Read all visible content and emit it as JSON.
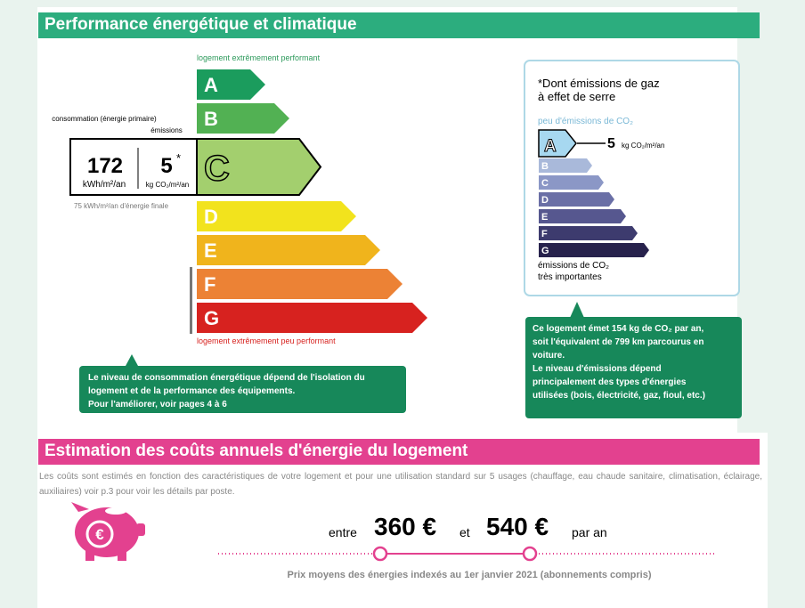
{
  "energy_section": {
    "title": "Performance énergétique et climatique",
    "top_label": "logement extrêmement performant",
    "bottom_label": "logement extrêmement peu performant",
    "classes": [
      "A",
      "B",
      "C",
      "D",
      "E",
      "F",
      "G"
    ],
    "current_class": "C",
    "consumption_label": "consommation (énergie primaire)",
    "emissions_label": "émissions",
    "consumption_value": "172",
    "consumption_unit": "kWh/m²/an",
    "emissions_value": "5",
    "emissions_mark": "*",
    "emissions_unit": "kg CO₂/m²/an",
    "final_energy": "75 kWh/m²/an d'énergie finale",
    "callout": [
      "Le niveau de consommation énergétique dépend de l'isolation du",
      "logement et de la performance des équipements.",
      "Pour l'améliorer, voir pages 4 à 6"
    ]
  },
  "climate_box": {
    "note": [
      "*Dont émissions de gaz",
      "à effet de serre"
    ],
    "top_label": "peu d'émissions de CO₂",
    "classes": [
      "A",
      "B",
      "C",
      "D",
      "E",
      "F",
      "G"
    ],
    "value": "5",
    "unit": "kg CO₂/m²/an",
    "bottom_label": [
      "émissions de CO₂",
      "très importantes"
    ],
    "callout": [
      "Ce logement émet 154 kg de CO₂ par an,",
      "soit l'équivalent de 799 km parcourus en",
      "voiture.",
      "Le niveau d'émissions dépend",
      "principalement des types d'énergies",
      "utilisées (bois, électricité, gaz, fioul, etc.)"
    ]
  },
  "cost_section": {
    "title": "Estimation des coûts annuels d'énergie du logement",
    "description": "Les coûts sont estimés en fonction des caractéristiques de votre logement et pour une utilisation standard sur 5 usages (chauffage, eau chaude sanitaire, climatisation, éclairage, auxiliaires) voir p.3 pour voir les détails par poste.",
    "from": "entre",
    "low": "360 €",
    "and": "et",
    "high": "540 €",
    "per": "par an",
    "footnote": "Prix moyens des énergies indexés au  1er janvier 2021 (abonnements compris)"
  }
}
